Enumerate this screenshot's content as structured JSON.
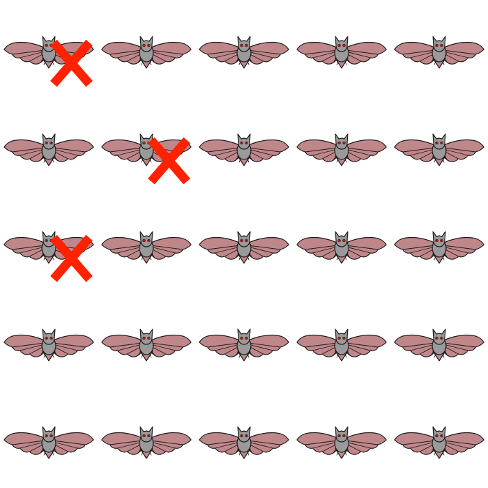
{
  "grid": {
    "rows": 5,
    "columns": 5,
    "crossed_out": [
      {
        "row": 1,
        "column": 1
      },
      {
        "row": 2,
        "column": 2
      },
      {
        "row": 3,
        "column": 1
      }
    ]
  },
  "colors": {
    "background": "#ffffff",
    "bat_wing": "#c0878a",
    "bat_body": "#9a9a9a",
    "bat_outline": "#1a1a1a",
    "bat_eye": "#d81e1e",
    "cross_mark": "#ff2200"
  },
  "icons": {
    "cell_icon": "bat-icon",
    "mark_icon": "cross-mark-icon"
  }
}
